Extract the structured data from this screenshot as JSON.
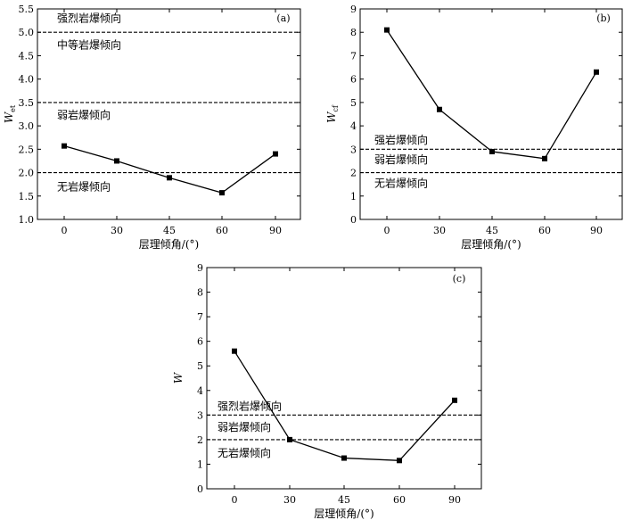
{
  "chart_data": [
    {
      "id": "a",
      "type": "line",
      "panel_label": "(a)",
      "xlabel": "层理倾角/(°)",
      "ylabel": "W",
      "ylabel_sub": "et",
      "categories": [
        "0",
        "30",
        "45",
        "60",
        "90"
      ],
      "ylim": [
        1.0,
        5.5
      ],
      "yticks": [
        "1.0",
        "1.5",
        "2.0",
        "2.5",
        "3.0",
        "3.5",
        "4.0",
        "4.5",
        "5.0",
        "5.5"
      ],
      "values": [
        2.57,
        2.25,
        1.89,
        1.57,
        2.4
      ],
      "ref_lines": [
        5.0,
        3.5,
        2.0
      ],
      "zones": [
        {
          "label": "强烈岩爆倾向",
          "y": 5.3
        },
        {
          "label": "中等岩爆倾向",
          "y": 4.73
        },
        {
          "label": "弱岩爆倾向",
          "y": 3.23
        },
        {
          "label": "无岩爆倾向",
          "y": 1.7
        }
      ],
      "grid": false
    },
    {
      "id": "b",
      "type": "line",
      "panel_label": "(b)",
      "xlabel": "层理倾角/(°)",
      "ylabel": "W",
      "ylabel_sub": "cf",
      "categories": [
        "0",
        "30",
        "45",
        "60",
        "90"
      ],
      "ylim": [
        0,
        9
      ],
      "yticks": [
        "0",
        "1",
        "2",
        "3",
        "4",
        "5",
        "6",
        "7",
        "8",
        "9"
      ],
      "values": [
        8.1,
        4.7,
        2.9,
        2.6,
        6.3
      ],
      "ref_lines": [
        3.0,
        2.0
      ],
      "zones": [
        {
          "label": "强岩爆倾向",
          "y": 3.4
        },
        {
          "label": "弱岩爆倾向",
          "y": 2.55
        },
        {
          "label": "无岩爆倾向",
          "y": 1.55
        }
      ],
      "grid": false
    },
    {
      "id": "c",
      "type": "line",
      "panel_label": "(c)",
      "xlabel": "层理倾角/(°)",
      "ylabel": "W",
      "ylabel_sub": "",
      "categories": [
        "0",
        "30",
        "45",
        "60",
        "90"
      ],
      "ylim": [
        0,
        9
      ],
      "yticks": [
        "0",
        "1",
        "2",
        "3",
        "4",
        "5",
        "6",
        "7",
        "8",
        "9"
      ],
      "values": [
        5.6,
        2.0,
        1.25,
        1.15,
        3.6
      ],
      "ref_lines": [
        3.0,
        2.0
      ],
      "zones": [
        {
          "label": "强烈岩爆倾向",
          "y": 3.35
        },
        {
          "label": "弱岩爆倾向",
          "y": 2.5
        },
        {
          "label": "无岩爆倾向",
          "y": 1.45
        }
      ],
      "grid": false
    }
  ]
}
